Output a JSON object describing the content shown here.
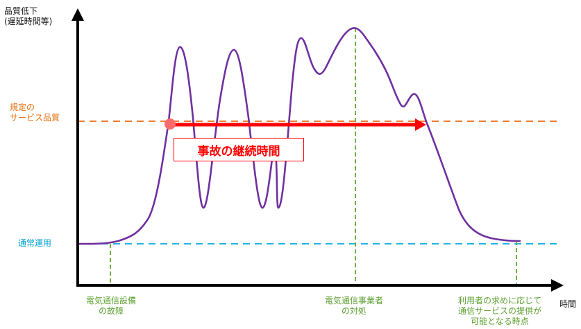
{
  "axes": {
    "y_label": [
      "品質低下",
      "(遅延時間等)"
    ],
    "x_label": "時間"
  },
  "lines": {
    "threshold_label": [
      "規定の",
      "サービス品質"
    ],
    "baseline_label": "通常運用"
  },
  "events": [
    {
      "id": "failure",
      "lines": [
        "電気通信設備",
        "の故障"
      ]
    },
    {
      "id": "response",
      "lines": [
        "電気通信事業者",
        "の対処"
      ]
    },
    {
      "id": "recovery",
      "lines": [
        "利用者の求めに応じて",
        "通信サービスの提供が",
        "可能となる時点"
      ]
    }
  ],
  "duration_label": "事故の継続時間",
  "colors": {
    "axis": "#000000",
    "quality_curve": "#7030a0",
    "threshold": "#ed7d31",
    "baseline": "#1fb4e4",
    "event_marker": "#70ad47",
    "duration": "#ff0000"
  }
}
